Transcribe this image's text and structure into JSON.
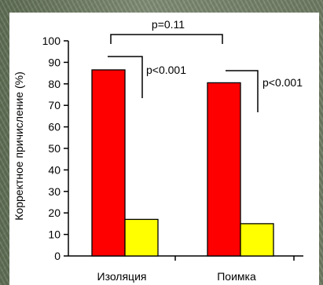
{
  "chart_data": {
    "type": "bar",
    "categories": [
      "Изоляция",
      "Поимка"
    ],
    "series": [
      {
        "values": [
          86.5,
          80.5
        ],
        "color": "#ff0000"
      },
      {
        "values": [
          17,
          15
        ],
        "color": "#ffff00"
      }
    ],
    "ylabel": "Корректное причисление (%)",
    "ylim": [
      0,
      100
    ],
    "yticks": [
      "0",
      "10",
      "20",
      "30",
      "40",
      "50",
      "60",
      "70",
      "80",
      "90",
      "100"
    ],
    "annotations": {
      "between_groups": "p=0.11",
      "group1": "p<0.001",
      "group2": "p<0.001"
    },
    "bar_outline": "#000000"
  }
}
